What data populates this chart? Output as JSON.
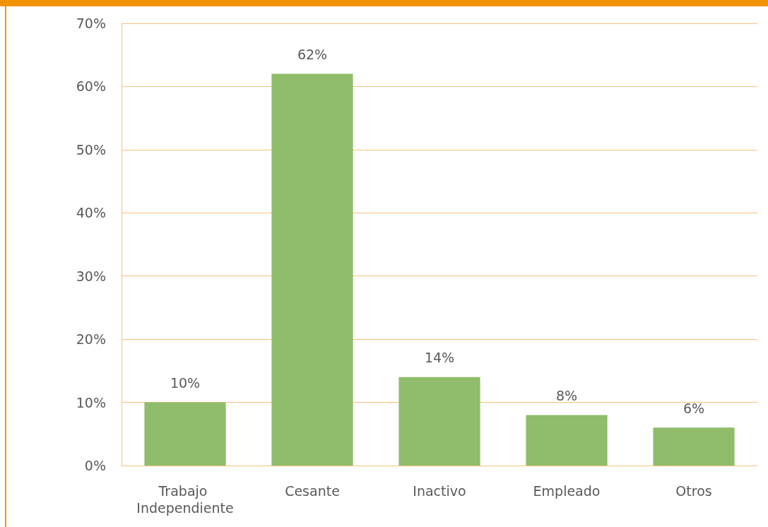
{
  "chart_data": {
    "type": "bar",
    "categories": [
      "Trabajo Independiente",
      "Cesante",
      "Inactivo",
      "Empleado",
      "Otros"
    ],
    "values": [
      10,
      62,
      14,
      8,
      6
    ],
    "color": "#8fbd6b",
    "value_labels": [
      "10%",
      "62%",
      "14%",
      "8%",
      "6%"
    ],
    "ylim": [
      0,
      70
    ],
    "yticks": [
      {
        "value": 0,
        "label": "0%"
      },
      {
        "value": 10,
        "label": "10%"
      },
      {
        "value": 20,
        "label": "20%"
      },
      {
        "value": 30,
        "label": "30%"
      },
      {
        "value": 40,
        "label": "40%"
      },
      {
        "value": 50,
        "label": "50%"
      },
      {
        "value": 60,
        "label": "60%"
      },
      {
        "value": 70,
        "label": "70%"
      }
    ],
    "grid": "y"
  }
}
